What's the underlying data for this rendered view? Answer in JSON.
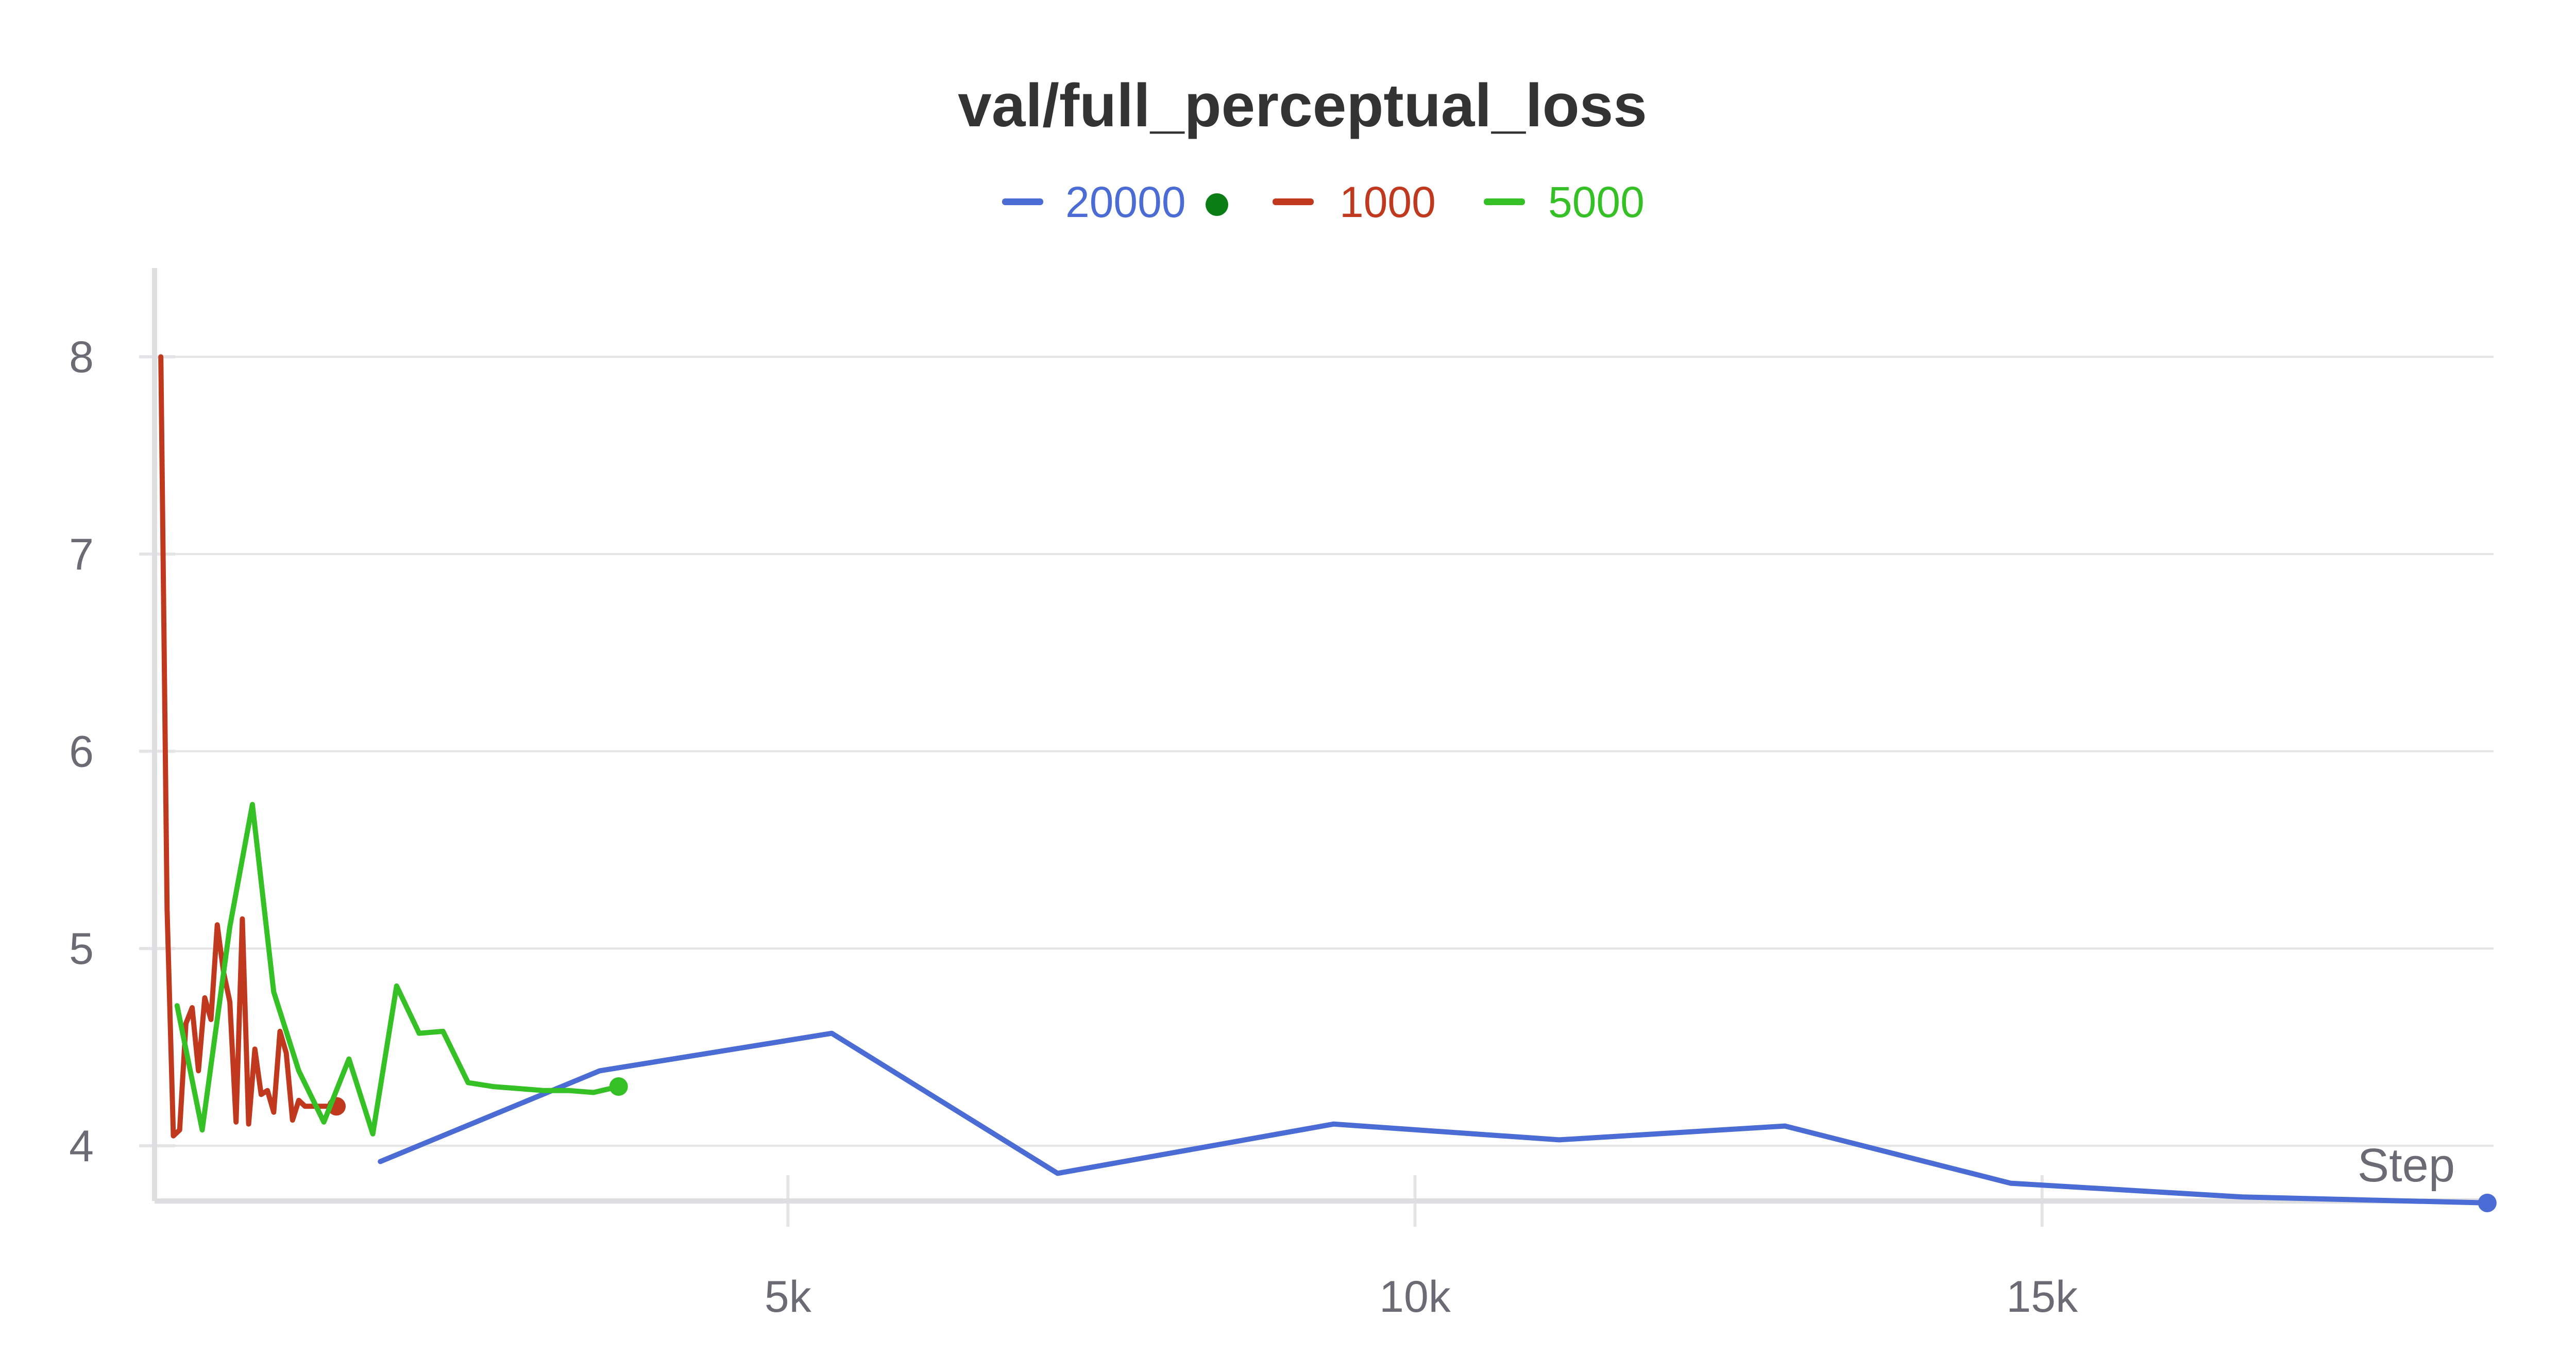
{
  "chart_data": {
    "type": "line",
    "title": "val/full_perceptual_loss",
    "xlabel": "Step",
    "ylabel": "",
    "xlim": [
      -50,
      18600
    ],
    "ylim": [
      3.72,
      8.45
    ],
    "x_ticks": [
      5000,
      10000,
      15000
    ],
    "x_tick_labels": [
      "5k",
      "10k",
      "15k"
    ],
    "y_ticks": [
      4,
      5,
      6,
      7,
      8
    ],
    "y_tick_labels": [
      "4",
      "5",
      "6",
      "7",
      "8"
    ],
    "grid": true,
    "legend_position": "top-center",
    "legend_marker_color": "#0a7d14",
    "series": [
      {
        "name": "20000",
        "color": "#4a6cd4",
        "x": [
          1750,
          3500,
          5350,
          7150,
          9350,
          11150,
          12950,
          14750,
          16600,
          18550
        ],
        "y": [
          3.92,
          4.38,
          4.57,
          3.86,
          4.11,
          4.03,
          4.1,
          3.81,
          3.74,
          3.71
        ]
      },
      {
        "name": "1000",
        "color": "#c0391f",
        "x": [
          0,
          50,
          100,
          150,
          200,
          250,
          300,
          350,
          400,
          450,
          500,
          550,
          600,
          650,
          700,
          750,
          800,
          850,
          900,
          950,
          1000,
          1050,
          1100,
          1150,
          1200,
          1250,
          1300,
          1350,
          1400
        ],
        "y": [
          8.0,
          5.2,
          4.05,
          4.08,
          4.62,
          4.7,
          4.38,
          4.75,
          4.64,
          5.12,
          4.88,
          4.73,
          4.12,
          5.15,
          4.11,
          4.49,
          4.26,
          4.28,
          4.17,
          4.58,
          4.47,
          4.13,
          4.23,
          4.2,
          4.2,
          4.2,
          4.2,
          4.2,
          4.2
        ]
      },
      {
        "name": "5000",
        "color": "#35c025",
        "x": [
          130,
          330,
          550,
          730,
          900,
          1100,
          1300,
          1500,
          1690,
          1880,
          2060,
          2250,
          2450,
          2650,
          2850,
          3050,
          3250,
          3450,
          3650
        ],
        "y": [
          4.71,
          4.08,
          5.11,
          5.73,
          4.78,
          4.38,
          4.12,
          4.44,
          4.06,
          4.81,
          4.57,
          4.58,
          4.32,
          4.3,
          4.29,
          4.28,
          4.28,
          4.27,
          4.3
        ]
      }
    ]
  }
}
